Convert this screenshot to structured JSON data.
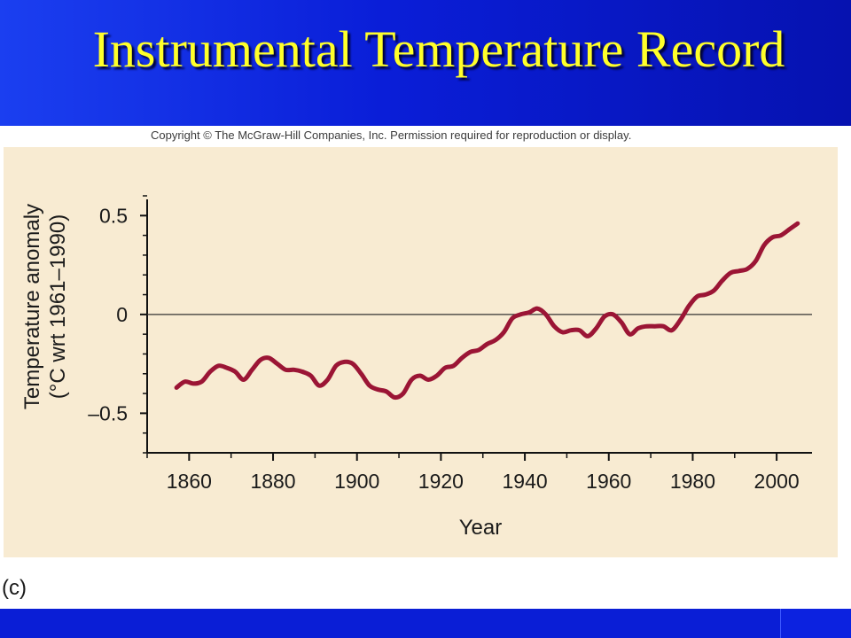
{
  "slide": {
    "title": "Instrumental Temperature Record",
    "copyright": "Copyright © The McGraw-Hill Companies, Inc. Permission required for reproduction or display.",
    "panel_label": "(c)"
  },
  "colors": {
    "background": "#0a1ed6",
    "title": "#ffff2a",
    "chart_panel": "#f8ebd2",
    "series_line": "#9b1535"
  },
  "chart_data": {
    "type": "line",
    "title": "",
    "xlabel": "Year",
    "ylabel_line1": "Temperature anomaly",
    "ylabel_line2": "(°C wrt 1961–1990)",
    "xlim": [
      1850,
      2008
    ],
    "ylim": [
      -0.7,
      0.6
    ],
    "x_ticks": [
      1860,
      1880,
      1900,
      1920,
      1940,
      1960,
      1980,
      2000
    ],
    "x_tick_labels": [
      "1860",
      "1880",
      "1900",
      "1920",
      "1940",
      "1960",
      "1980",
      "2000"
    ],
    "y_ticks": [
      0.5,
      0,
      -0.5
    ],
    "y_tick_labels": [
      "0.5",
      "0",
      "–0.5"
    ],
    "reference_line": 0,
    "grid": false,
    "series": [
      {
        "x": [
          1857,
          1859,
          1861,
          1863,
          1865,
          1867,
          1869,
          1871,
          1873,
          1875,
          1877,
          1879,
          1881,
          1883,
          1885,
          1887,
          1889,
          1891,
          1893,
          1895,
          1897,
          1899,
          1901,
          1903,
          1905,
          1907,
          1909,
          1911,
          1913,
          1915,
          1917,
          1919,
          1921,
          1923,
          1925,
          1927,
          1929,
          1931,
          1933,
          1935,
          1937,
          1939,
          1941,
          1943,
          1945,
          1947,
          1949,
          1951,
          1953,
          1955,
          1957,
          1959,
          1961,
          1963,
          1965,
          1967,
          1969,
          1971,
          1973,
          1975,
          1977,
          1979,
          1981,
          1983,
          1985,
          1987,
          1989,
          1991,
          1993,
          1995,
          1997,
          1999,
          2001,
          2003,
          2005
        ],
        "values": [
          -0.37,
          -0.34,
          -0.35,
          -0.34,
          -0.29,
          -0.26,
          -0.27,
          -0.29,
          -0.33,
          -0.28,
          -0.23,
          -0.22,
          -0.25,
          -0.28,
          -0.28,
          -0.29,
          -0.31,
          -0.36,
          -0.33,
          -0.26,
          -0.24,
          -0.25,
          -0.3,
          -0.36,
          -0.38,
          -0.39,
          -0.42,
          -0.4,
          -0.33,
          -0.31,
          -0.33,
          -0.31,
          -0.27,
          -0.26,
          -0.22,
          -0.19,
          -0.18,
          -0.15,
          -0.13,
          -0.09,
          -0.02,
          0.0,
          0.01,
          0.03,
          0.0,
          -0.06,
          -0.09,
          -0.08,
          -0.08,
          -0.11,
          -0.07,
          -0.01,
          0.0,
          -0.04,
          -0.1,
          -0.07,
          -0.06,
          -0.06,
          -0.06,
          -0.08,
          -0.03,
          0.04,
          0.09,
          0.1,
          0.12,
          0.17,
          0.21,
          0.22,
          0.23,
          0.27,
          0.35,
          0.39,
          0.4,
          0.43,
          0.46
        ]
      }
    ]
  }
}
